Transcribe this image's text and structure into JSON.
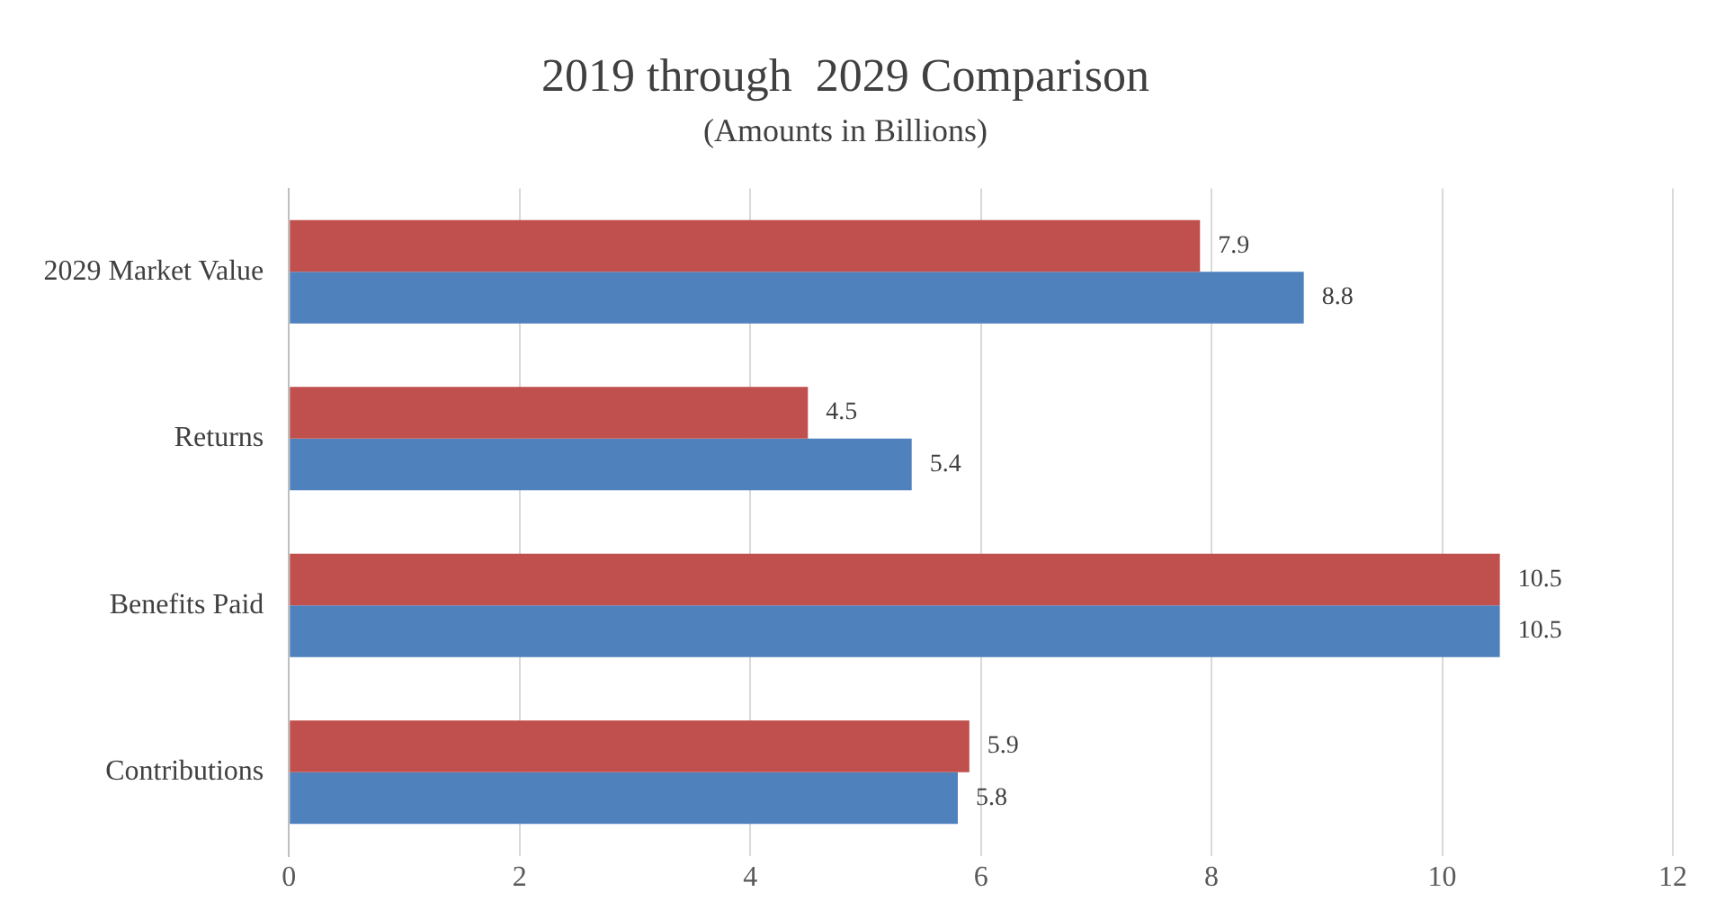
{
  "chart_data": {
    "type": "bar",
    "orientation": "horizontal",
    "title": "2019 through  2029 Comparison",
    "subtitle": "(Amounts in Billions)",
    "categories": [
      "2029 Market Value",
      "Returns",
      "Benefits Paid",
      "Contributions"
    ],
    "series": [
      {
        "color": "#c0504d",
        "values": [
          7.9,
          4.5,
          10.5,
          5.9
        ]
      },
      {
        "color": "#4f81bd",
        "values": [
          8.8,
          5.4,
          10.5,
          5.8
        ]
      }
    ],
    "xlim": [
      0,
      12
    ],
    "xticks": [
      0,
      2,
      4,
      6,
      8,
      10,
      12
    ],
    "grid": "x",
    "data_labels": true
  }
}
